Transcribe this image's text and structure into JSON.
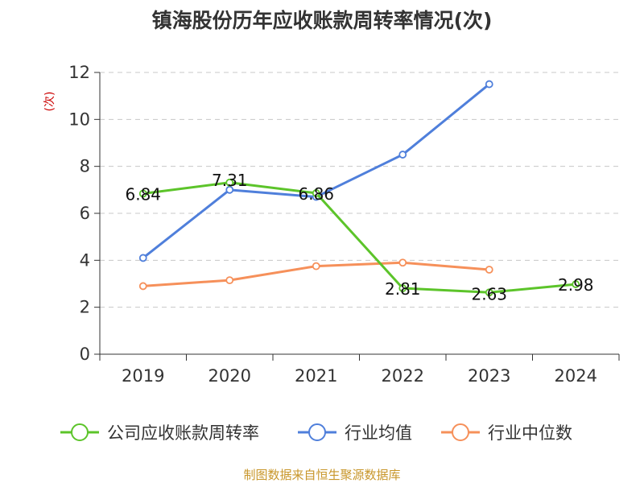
{
  "chart_data": {
    "type": "line",
    "title": "镇海股份历年应收账款周转率情况(次)",
    "ylabel": "(次)",
    "xlabel": "",
    "categories": [
      "2019",
      "2020",
      "2021",
      "2022",
      "2023",
      "2024"
    ],
    "ylim": [
      0,
      12
    ],
    "yticks": [
      0,
      2,
      4,
      6,
      8,
      10,
      12
    ],
    "grid": true,
    "legend_position": "bottom",
    "series": [
      {
        "name": "公司应收账款周转率",
        "color": "#5cc42a",
        "values": [
          6.84,
          7.31,
          6.86,
          2.81,
          2.63,
          2.98
        ],
        "labels": [
          "6.84",
          "7.31",
          "6.86",
          "2.81",
          "2.63",
          "2.98"
        ]
      },
      {
        "name": "行业均值",
        "color": "#4f7fdb",
        "values": [
          4.1,
          7.0,
          6.7,
          8.5,
          11.5,
          null
        ]
      },
      {
        "name": "行业中位数",
        "color": "#f6905a",
        "values": [
          2.9,
          3.15,
          3.75,
          3.9,
          3.6,
          null
        ]
      }
    ],
    "source": "制图数据来自恒生聚源数据库"
  }
}
